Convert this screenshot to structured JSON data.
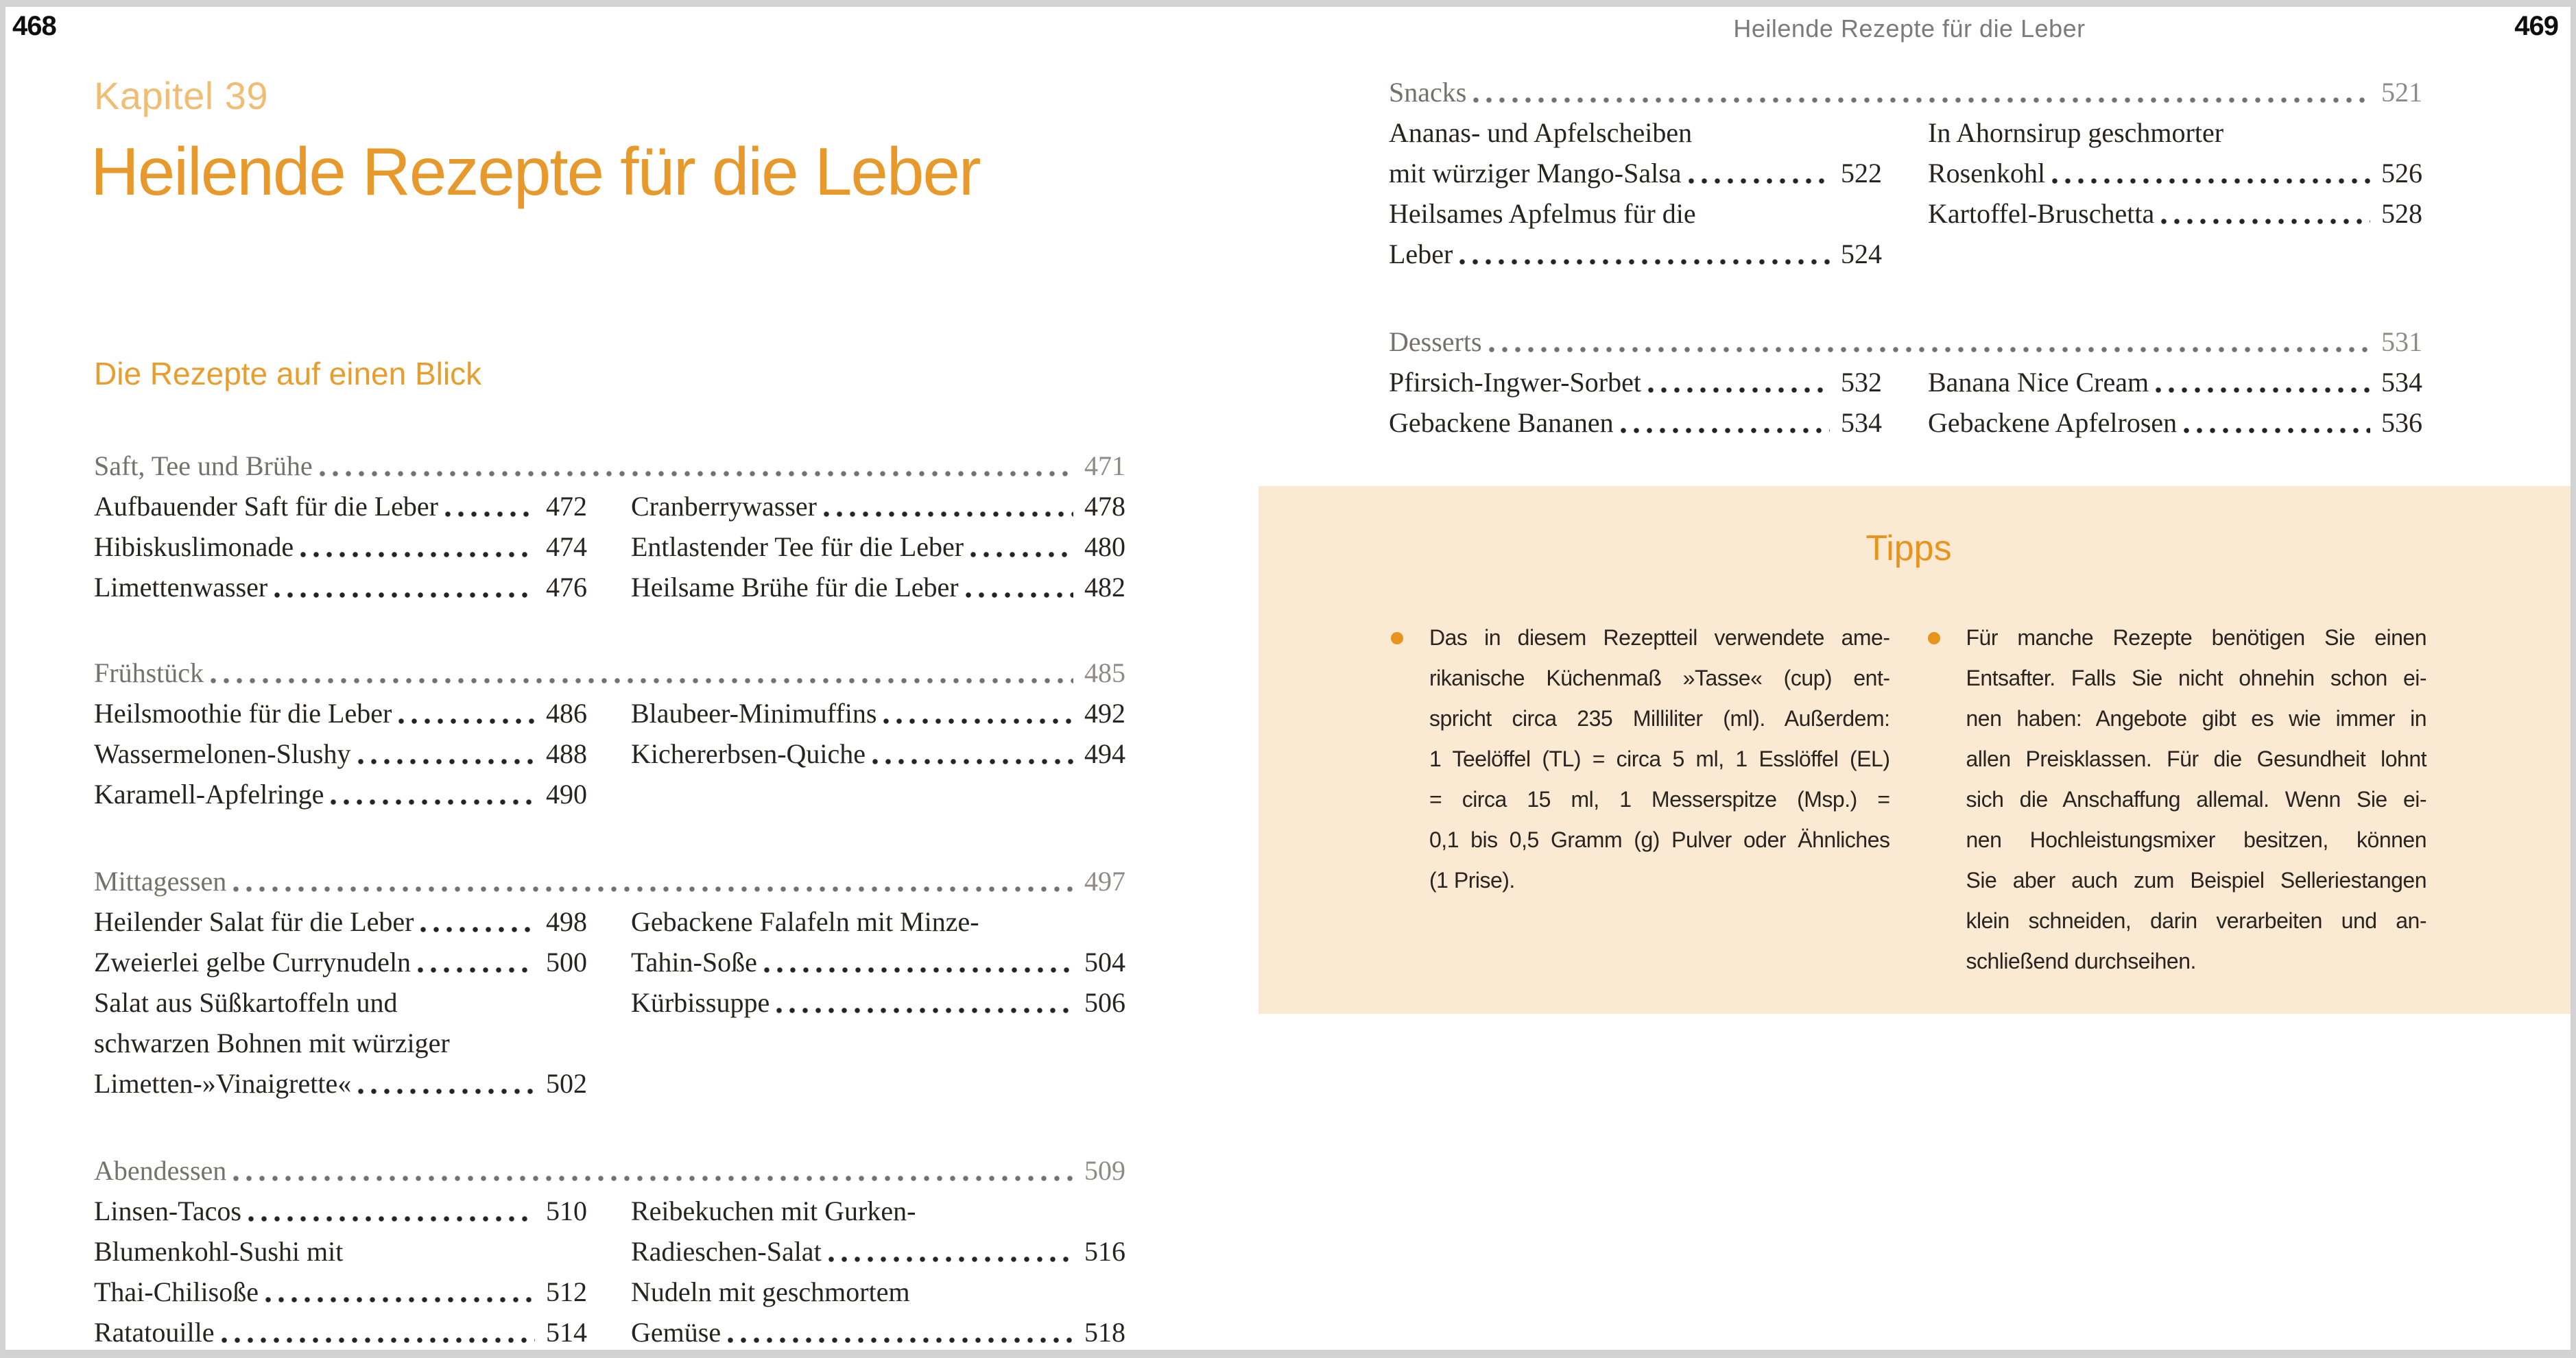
{
  "page": {
    "left_number": "468",
    "right_number": "469",
    "running_header": "Heilende Rezepte für die Leber"
  },
  "colors": {
    "accent_orange": "#e8992b",
    "kicker_orange": "#efbd74",
    "tips_orange": "#e8941c",
    "tips_background": "#fae9d3",
    "section_gray": "#75716b",
    "body_ink": "#272420"
  },
  "left": {
    "kicker": "Kapitel 39",
    "title": "Heilende Rezepte für die Leber",
    "subtitle": "Die Rezepte auf einen Blick",
    "sections": [
      {
        "header": "Saft, Tee und Brühe",
        "page": "471",
        "col1": [
          {
            "text": "Aufbauender Saft für die Leber",
            "page": "472"
          },
          {
            "text": "Hibiskuslimonade",
            "page": "474"
          },
          {
            "text": "Limettenwasser",
            "page": "476"
          }
        ],
        "col2": [
          {
            "text": "Cranberrywasser",
            "page": "478"
          },
          {
            "text": "Entlastender Tee für die Leber",
            "page": "480"
          },
          {
            "text": "Heilsame Brühe für die Leber",
            "page": "482"
          }
        ]
      },
      {
        "header": "Frühstück",
        "page": "485",
        "col1": [
          {
            "text": "Heilsmoothie für die Leber",
            "page": "486"
          },
          {
            "text": "Wassermelonen-Slushy",
            "page": "488"
          },
          {
            "text": "Karamell-Apfelringe",
            "page": "490"
          }
        ],
        "col2": [
          {
            "text": "Blaubeer-Minimuffins",
            "page": "492"
          },
          {
            "text": "Kichererbsen-Quiche",
            "page": "494"
          }
        ]
      },
      {
        "header": "Mittagessen",
        "page": "497",
        "col1": [
          {
            "text": "Heilender Salat für die Leber",
            "page": "498"
          },
          {
            "text": "Zweierlei gelbe Currynudeln",
            "page": "500"
          },
          {
            "text": "Salat aus Süßkartoffeln und",
            "page": ""
          },
          {
            "text": "schwarzen Bohnen mit würziger",
            "page": ""
          },
          {
            "text": "Limetten-»Vinaigrette«",
            "page": "502"
          }
        ],
        "col2": [
          {
            "text": "Gebackene Falafeln mit Minze-",
            "page": ""
          },
          {
            "text": "Tahin-Soße",
            "page": "504"
          },
          {
            "text": "Kürbissuppe",
            "page": "506"
          }
        ]
      },
      {
        "header": "Abendessen",
        "page": "509",
        "col1": [
          {
            "text": "Linsen-Tacos",
            "page": "510"
          },
          {
            "text": "Blumenkohl-Sushi mit",
            "page": ""
          },
          {
            "text": "Thai-Chilisoße",
            "page": "512"
          },
          {
            "text": "Ratatouille",
            "page": "514"
          }
        ],
        "col2": [
          {
            "text": "Reibekuchen mit Gurken-",
            "page": ""
          },
          {
            "text": "Radieschen-Salat",
            "page": "516"
          },
          {
            "text": "Nudeln mit geschmortem",
            "page": ""
          },
          {
            "text": "Gemüse",
            "page": "518"
          }
        ]
      }
    ]
  },
  "right": {
    "sections": [
      {
        "header": "Snacks",
        "page": "521",
        "col1": [
          {
            "text": "Ananas- und Apfelscheiben",
            "page": ""
          },
          {
            "text": "mit würziger Mango-Salsa",
            "page": "522"
          },
          {
            "text": "Heilsames Apfelmus für die",
            "page": ""
          },
          {
            "text": "Leber",
            "page": "524"
          }
        ],
        "col2": [
          {
            "text": "In Ahornsirup geschmorter",
            "page": ""
          },
          {
            "text": "Rosenkohl",
            "page": "526"
          },
          {
            "text": "Kartoffel-Bruschetta",
            "page": "528"
          }
        ]
      },
      {
        "header": "Desserts",
        "page": "531",
        "col1": [
          {
            "text": "Pfirsich-Ingwer-Sorbet",
            "page": "532"
          },
          {
            "text": "Gebackene Bananen",
            "page": "534"
          }
        ],
        "col2": [
          {
            "text": "Banana Nice Cream",
            "page": "534"
          },
          {
            "text": "Gebackene Apfelrosen",
            "page": "536"
          }
        ]
      }
    ],
    "tips": {
      "title": "Tipps",
      "items": [
        {
          "lines": [
            "Das in diesem Rezeptteil verwendete ame-",
            "rikanische Küchenmaß »Tasse« (cup) ent-",
            "spricht circa 235 Milliliter (ml). Außerdem:",
            "1 Teelöffel (TL) = circa 5 ml, 1 Esslöffel (EL)",
            "= circa 15 ml, 1 Messerspitze (Msp.) =",
            "0,1 bis 0,5 Gramm (g) Pulver oder Ähnliches",
            "(1 Prise)."
          ]
        },
        {
          "lines": [
            "Für manche Rezepte benötigen Sie einen",
            "Entsafter. Falls Sie nicht ohnehin schon ei-",
            "nen haben: Angebote gibt es wie immer in",
            "allen Preisklassen. Für die Gesundheit lohnt",
            "sich die Anschaffung allemal. Wenn Sie ei-",
            "nen Hochleistungsmixer besitzen, können",
            "Sie aber auch zum Beispiel Selleriestangen",
            "klein schneiden, darin verarbeiten und an-",
            "schließend durchseihen."
          ]
        }
      ]
    }
  }
}
